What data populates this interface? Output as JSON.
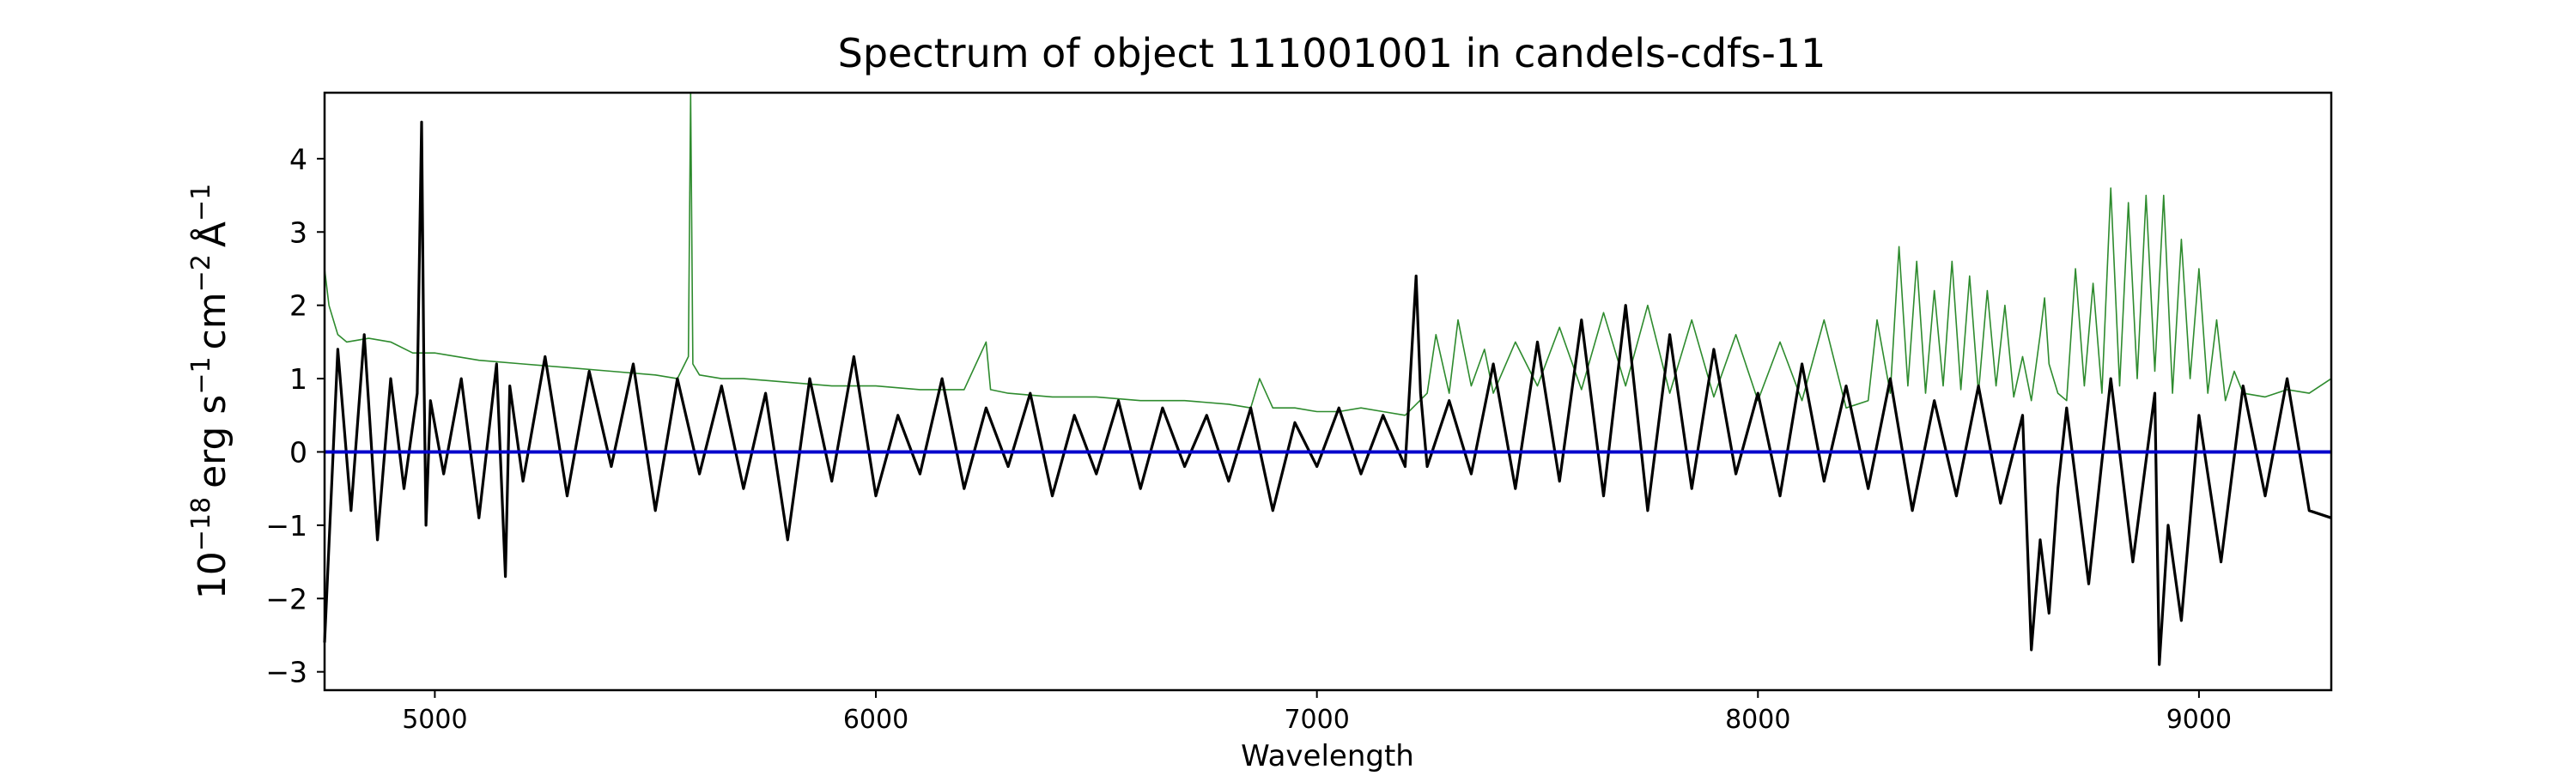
{
  "chart_data": {
    "type": "line",
    "title": "Spectrum of object 111001001 in candels-cdfs-11",
    "xlabel": "Wavelength",
    "ylabel_parts": {
      "base": "10",
      "exp1": "−18",
      "erg": "erg s",
      "exp2": "−1",
      "cm": "cm",
      "exp3": "−2",
      "ang": "Å",
      "exp4": "−1"
    },
    "xlim": [
      4750,
      9300
    ],
    "ylim": [
      -3.25,
      4.9
    ],
    "xticks": [
      5000,
      6000,
      7000,
      8000,
      9000
    ],
    "xtick_labels": [
      "5000",
      "6000",
      "7000",
      "8000",
      "9000"
    ],
    "yticks": [
      -3,
      -2,
      -1,
      0,
      1,
      2,
      3,
      4
    ],
    "ytick_labels": [
      "−3",
      "−2",
      "−1",
      "0",
      "1",
      "2",
      "3",
      "4"
    ],
    "grid": false,
    "colors": {
      "flux": "#000000",
      "error": "#2e8b2e",
      "zero": "#0000cc"
    },
    "series": [
      {
        "role": "flux",
        "x": [
          4750,
          4780,
          4810,
          4840,
          4870,
          4900,
          4930,
          4960,
          4970,
          4975,
          4980,
          4990,
          5020,
          5060,
          5100,
          5140,
          5160,
          5170,
          5200,
          5250,
          5300,
          5350,
          5400,
          5450,
          5500,
          5550,
          5600,
          5650,
          5700,
          5750,
          5800,
          5850,
          5900,
          5950,
          6000,
          6050,
          6100,
          6150,
          6200,
          6250,
          6300,
          6350,
          6400,
          6450,
          6500,
          6550,
          6600,
          6650,
          6700,
          6750,
          6800,
          6850,
          6900,
          6950,
          7000,
          7050,
          7100,
          7150,
          7200,
          7225,
          7235,
          7250,
          7300,
          7350,
          7400,
          7450,
          7500,
          7550,
          7600,
          7650,
          7700,
          7750,
          7800,
          7850,
          7900,
          7950,
          8000,
          8050,
          8100,
          8150,
          8200,
          8250,
          8300,
          8350,
          8400,
          8450,
          8500,
          8550,
          8600,
          8620,
          8640,
          8660,
          8680,
          8700,
          8750,
          8800,
          8850,
          8900,
          8910,
          8930,
          8960,
          9000,
          9050,
          9100,
          9150,
          9200,
          9250,
          9300
        ],
        "y": [
          -2.6,
          1.4,
          -0.8,
          1.6,
          -1.2,
          1.0,
          -0.5,
          0.8,
          4.5,
          1.2,
          -1.0,
          0.7,
          -0.3,
          1.0,
          -0.9,
          1.2,
          -1.7,
          0.9,
          -0.4,
          1.3,
          -0.6,
          1.1,
          -0.2,
          1.2,
          -0.8,
          1.0,
          -0.3,
          0.9,
          -0.5,
          0.8,
          -1.2,
          1.0,
          -0.4,
          1.3,
          -0.6,
          0.5,
          -0.3,
          1.0,
          -0.5,
          0.6,
          -0.2,
          0.8,
          -0.6,
          0.5,
          -0.3,
          0.7,
          -0.5,
          0.6,
          -0.2,
          0.5,
          -0.4,
          0.6,
          -0.8,
          0.4,
          -0.2,
          0.6,
          -0.3,
          0.5,
          -0.2,
          2.4,
          0.8,
          -0.2,
          0.7,
          -0.3,
          1.2,
          -0.5,
          1.5,
          -0.4,
          1.8,
          -0.6,
          2.0,
          -0.8,
          1.6,
          -0.5,
          1.4,
          -0.3,
          0.8,
          -0.6,
          1.2,
          -0.4,
          0.9,
          -0.5,
          1.0,
          -0.8,
          0.7,
          -0.6,
          0.9,
          -0.7,
          0.5,
          -2.7,
          -1.2,
          -2.2,
          -0.5,
          0.6,
          -1.8,
          1.0,
          -1.5,
          0.8,
          -2.9,
          -1.0,
          -2.3,
          0.5,
          -1.5,
          0.9,
          -0.6,
          1.0,
          -0.8,
          -0.9
        ]
      },
      {
        "role": "error",
        "x": [
          4750,
          4760,
          4780,
          4800,
          4850,
          4900,
          4950,
          5000,
          5050,
          5100,
          5200,
          5300,
          5400,
          5500,
          5550,
          5575,
          5580,
          5585,
          5600,
          5650,
          5700,
          5800,
          5900,
          6000,
          6100,
          6200,
          6250,
          6260,
          6300,
          6400,
          6500,
          6600,
          6700,
          6800,
          6850,
          6870,
          6900,
          6950,
          7000,
          7050,
          7100,
          7150,
          7200,
          7250,
          7270,
          7300,
          7320,
          7350,
          7380,
          7400,
          7450,
          7500,
          7550,
          7600,
          7650,
          7700,
          7750,
          7800,
          7850,
          7900,
          7950,
          8000,
          8050,
          8100,
          8150,
          8200,
          8250,
          8270,
          8300,
          8320,
          8340,
          8360,
          8380,
          8400,
          8420,
          8440,
          8460,
          8480,
          8500,
          8520,
          8540,
          8560,
          8580,
          8600,
          8620,
          8640,
          8650,
          8660,
          8680,
          8700,
          8720,
          8740,
          8760,
          8780,
          8800,
          8820,
          8840,
          8860,
          8880,
          8900,
          8920,
          8940,
          8960,
          8980,
          9000,
          9020,
          9040,
          9060,
          9080,
          9100,
          9150,
          9200,
          9250,
          9300
        ],
        "y": [
          2.5,
          2.0,
          1.6,
          1.5,
          1.55,
          1.5,
          1.35,
          1.35,
          1.3,
          1.25,
          1.2,
          1.15,
          1.1,
          1.05,
          1.0,
          1.3,
          4.9,
          1.2,
          1.05,
          1.0,
          1.0,
          0.95,
          0.9,
          0.9,
          0.85,
          0.85,
          1.5,
          0.85,
          0.8,
          0.75,
          0.75,
          0.7,
          0.7,
          0.65,
          0.6,
          1.0,
          0.6,
          0.6,
          0.55,
          0.55,
          0.6,
          0.55,
          0.5,
          0.8,
          1.6,
          0.8,
          1.8,
          0.9,
          1.4,
          0.8,
          1.5,
          0.9,
          1.7,
          0.85,
          1.9,
          0.9,
          2.0,
          0.8,
          1.8,
          0.75,
          1.6,
          0.7,
          1.5,
          0.7,
          1.8,
          0.6,
          0.7,
          1.8,
          0.8,
          2.8,
          0.9,
          2.6,
          0.8,
          2.2,
          0.9,
          2.6,
          0.85,
          2.4,
          0.8,
          2.2,
          0.9,
          2.0,
          0.75,
          1.3,
          0.7,
          1.6,
          2.1,
          1.2,
          0.8,
          0.7,
          2.5,
          0.9,
          2.3,
          0.8,
          3.6,
          0.9,
          3.4,
          1.0,
          3.5,
          1.1,
          3.5,
          0.8,
          2.9,
          1.0,
          2.5,
          0.8,
          1.8,
          0.7,
          1.1,
          0.8,
          0.75,
          0.85,
          0.8,
          1.0
        ]
      }
    ]
  }
}
